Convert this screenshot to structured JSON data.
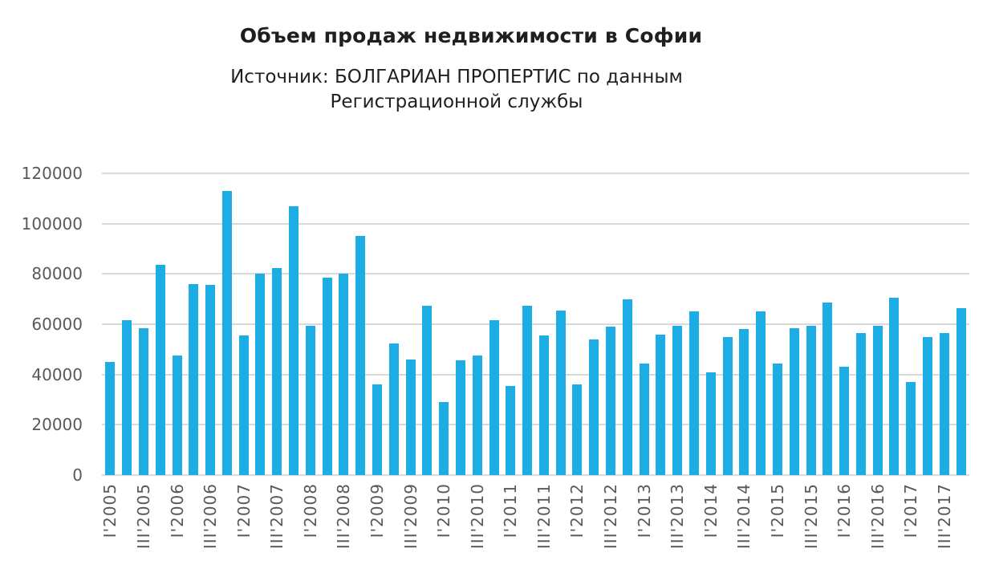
{
  "colors": {
    "background": "#FFFFFF",
    "bar": "#1CADE4",
    "gridline": "#D9D9D9",
    "axis_text": "#595959",
    "title_text": "#1F1F1F"
  },
  "chart_data": {
    "type": "bar",
    "title": "Объем продаж недвижимости в Софии",
    "subtitle_lines": [
      "Источник: БОЛГАРИАН ПРОПЕРТИС по данным",
      "Регистрационной службы"
    ],
    "xlabel": "",
    "ylabel": "",
    "ylim": [
      0,
      120000
    ],
    "y_ticks": [
      0,
      20000,
      40000,
      60000,
      80000,
      100000,
      120000
    ],
    "y_tick_labels": [
      "0",
      "20000",
      "40000",
      "60000",
      "80000",
      "100000",
      "120000"
    ],
    "x_tick_labels": [
      "I'2005",
      "III'2005",
      "I'2006",
      "III'2006",
      "I'2007",
      "III'2007",
      "I'2008",
      "III'2008",
      "I'2009",
      "III'2009",
      "I'2010",
      "III'2010",
      "I'2011",
      "III'2011",
      "I'2012",
      "III'2012",
      "I'2013",
      "III'2013",
      "I'2014",
      "III'2014",
      "I'2015",
      "III'2015",
      "I'2016",
      "III'2016",
      "I'2017",
      "III'2017"
    ],
    "x_tick_every_n_bars": 2,
    "bars_are_quarterly": true,
    "values": [
      45000,
      61500,
      58500,
      83500,
      47500,
      76000,
      75500,
      113000,
      55500,
      80000,
      82500,
      107000,
      59500,
      78500,
      80000,
      95000,
      36000,
      52500,
      46000,
      67500,
      29000,
      45500,
      47500,
      61500,
      35500,
      67500,
      55500,
      65500,
      36000,
      54000,
      59000,
      70000,
      44500,
      56000,
      59500,
      65000,
      41000,
      55000,
      58000,
      65000,
      44500,
      58500,
      59500,
      68500,
      43000,
      56500,
      59500,
      70500,
      37000,
      55000,
      56500,
      66500
    ],
    "grid": "horizontal",
    "legend": "none",
    "bar_color": "#1CADE4"
  }
}
